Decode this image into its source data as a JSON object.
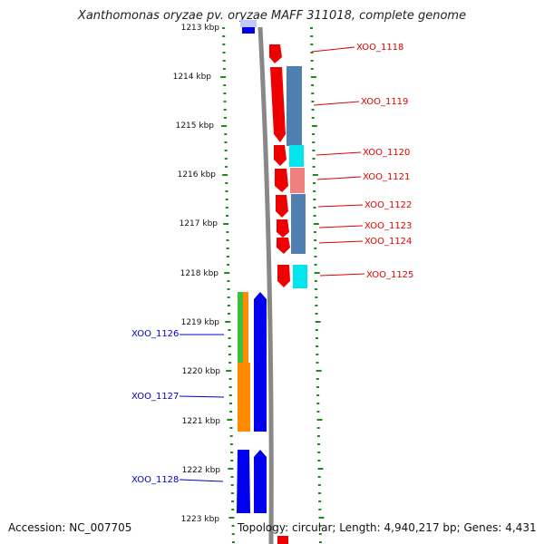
{
  "title": "Xanthomonas oryzae pv. oryzae MAFF 311018, complete genome",
  "footer": {
    "accession": "Accession: NC_007705",
    "info": "Topology: circular; Length: 4,940,217 bp; Genes: 4,431"
  },
  "colors": {
    "tick": "#1e8a1e",
    "backbone": "#888888",
    "gene_red": "#ee0000",
    "gene_blue": "#0000ee",
    "gene_orange": "#ff8c00",
    "gene_green": "#3cbf3c",
    "band_steel": "#4f7fb0",
    "band_cyan": "#00e5ee",
    "band_pink": "#f08080"
  },
  "scale": {
    "unit": "kbp",
    "labels": [
      "1213 kbp",
      "1214 kbp",
      "1215 kbp",
      "1216 kbp",
      "1217 kbp",
      "1218 kbp",
      "1219 kbp",
      "1220 kbp",
      "1221 kbp",
      "1222 kbp",
      "1223 kbp"
    ]
  },
  "genes_right": [
    "XOO_1118",
    "XOO_1119",
    "XOO_1120",
    "XOO_1121",
    "XOO_1122",
    "XOO_1123",
    "XOO_1124",
    "XOO_1125"
  ],
  "genes_left": [
    "XOO_1126",
    "XOO_1127",
    "XOO_1128"
  ]
}
